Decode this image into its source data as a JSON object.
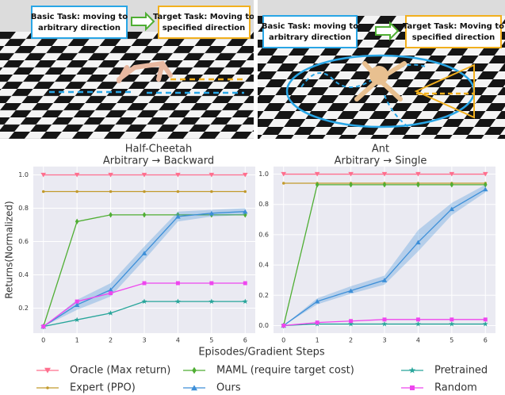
{
  "images": [
    {
      "basic_callout": [
        "Basic Task: moving to",
        "arbitrary direction"
      ],
      "target_callout": [
        "Target Task: Moving to",
        "specified direction"
      ]
    },
    {
      "basic_callout": [
        "Basic Task: moving to",
        "arbitrary direction"
      ],
      "target_callout": [
        "Target Task: Moving to",
        "specified direction"
      ]
    }
  ],
  "xlabel": "Episodes/Gradient Steps",
  "ylabel": "Returns(Normalized)",
  "chart_data": [
    {
      "type": "line",
      "title": "Half-Cheetah",
      "subtitle": "Arbitrary → Backward",
      "x": [
        0,
        1,
        2,
        3,
        4,
        5,
        6
      ],
      "xlim": [
        -0.3,
        6.3
      ],
      "xticks": [
        0,
        1,
        2,
        3,
        4,
        5,
        6
      ],
      "ylim": [
        0.05,
        1.05
      ],
      "yticks": [
        0.2,
        0.4,
        0.6,
        0.8,
        {
          "value": 1,
          "label": "1.0"
        }
      ],
      "grid": true,
      "series": [
        {
          "name": "Oracle (Max return)",
          "color": "#ff6f8e",
          "marker": "tri-down",
          "values": [
            1,
            1,
            1,
            1,
            1,
            1,
            1
          ]
        },
        {
          "name": "Expert (PPO)",
          "color": "#c29a2c",
          "marker": "dot",
          "values": [
            0.9,
            0.9,
            0.9,
            0.9,
            0.9,
            0.9,
            0.9
          ]
        },
        {
          "name": "MAML (require target cost)",
          "color": "#4fae33",
          "marker": "diamond",
          "values": [
            0.09,
            0.72,
            0.76,
            0.76,
            0.76,
            0.76,
            0.76
          ]
        },
        {
          "name": "Ours",
          "color": "#3d8fd8",
          "marker": "tri-up",
          "values": [
            0.09,
            0.22,
            0.31,
            0.53,
            0.75,
            0.77,
            0.78
          ],
          "band_lower": [
            0.09,
            0.19,
            0.27,
            0.49,
            0.72,
            0.75,
            0.76
          ],
          "band_upper": [
            0.09,
            0.25,
            0.35,
            0.57,
            0.78,
            0.79,
            0.8
          ]
        },
        {
          "name": "Pretrained",
          "color": "#27a59a",
          "marker": "star",
          "values": [
            0.09,
            0.13,
            0.17,
            0.24,
            0.24,
            0.24,
            0.24
          ]
        },
        {
          "name": "Random",
          "color": "#ee46ee",
          "marker": "square",
          "values": [
            0.09,
            0.24,
            0.29,
            0.35,
            0.35,
            0.35,
            0.35
          ]
        }
      ]
    },
    {
      "type": "line",
      "title": "Ant",
      "subtitle": "Arbitrary → Single",
      "x": [
        0,
        1,
        2,
        3,
        4,
        5,
        6
      ],
      "xlim": [
        -0.3,
        6.3
      ],
      "xticks": [
        0,
        1,
        2,
        3,
        4,
        5,
        6
      ],
      "ylim": [
        -0.05,
        1.05
      ],
      "yticks": [
        {
          "value": 0,
          "label": "0.0"
        },
        0.2,
        0.4,
        0.6,
        0.8,
        {
          "value": 1,
          "label": "1.0"
        }
      ],
      "grid": true,
      "series": [
        {
          "color": "#ff6f8e",
          "marker": "tri-down",
          "values": [
            1,
            1,
            1,
            1,
            1,
            1,
            1
          ]
        },
        {
          "color": "#c29a2c",
          "marker": "dot",
          "values": [
            0.94,
            0.94,
            0.94,
            0.94,
            0.94,
            0.94,
            0.94
          ]
        },
        {
          "color": "#4fae33",
          "marker": "diamond",
          "values": [
            0,
            0.93,
            0.93,
            0.93,
            0.93,
            0.93,
            0.93
          ]
        },
        {
          "color": "#3d8fd8",
          "marker": "tri-up",
          "values": [
            0,
            0.16,
            0.23,
            0.3,
            0.55,
            0.77,
            0.9
          ],
          "band_lower": [
            0,
            0.14,
            0.21,
            0.27,
            0.49,
            0.73,
            0.88
          ],
          "band_upper": [
            0,
            0.18,
            0.26,
            0.33,
            0.63,
            0.81,
            0.93
          ]
        },
        {
          "color": "#27a59a",
          "marker": "star",
          "values": [
            0,
            0.01,
            0.01,
            0.01,
            0.01,
            0.01,
            0.01
          ]
        },
        {
          "color": "#ee46ee",
          "marker": "square",
          "values": [
            0,
            0.02,
            0.03,
            0.04,
            0.04,
            0.04,
            0.04
          ]
        }
      ]
    }
  ]
}
